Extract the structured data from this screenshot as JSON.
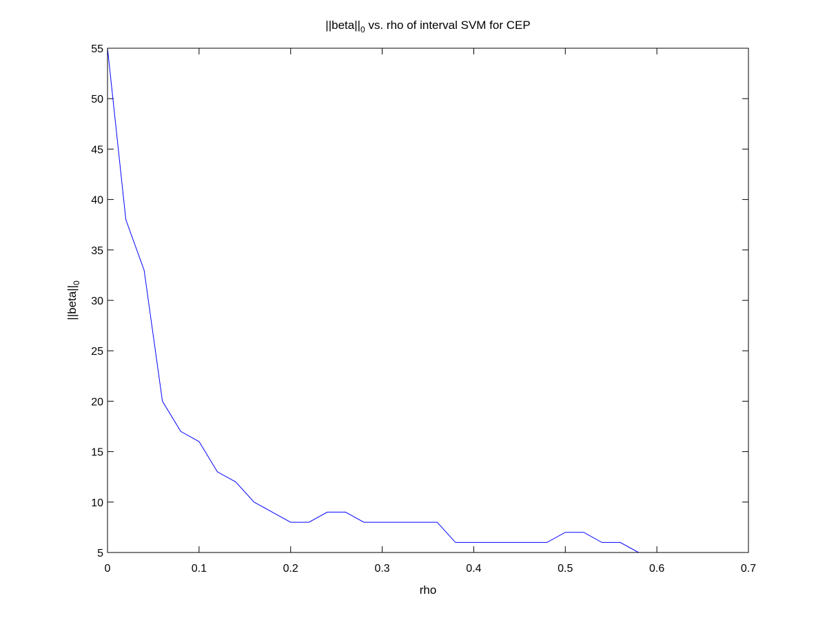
{
  "chart_data": {
    "type": "line",
    "title": {
      "main": "||beta||",
      "sub": "0",
      "rest": " vs. rho of interval SVM for CEP"
    },
    "xlabel": "rho",
    "ylabel": {
      "main": "||beta||",
      "sub": "0"
    },
    "xlim": [
      0,
      0.7
    ],
    "ylim": [
      5,
      55
    ],
    "xticks": [
      0,
      0.1,
      0.2,
      0.3,
      0.4,
      0.5,
      0.6,
      0.7
    ],
    "xtick_labels": [
      "0",
      "0.1",
      "0.2",
      "0.3",
      "0.4",
      "0.5",
      "0.6",
      "0.7"
    ],
    "yticks": [
      5,
      10,
      15,
      20,
      25,
      30,
      35,
      40,
      45,
      50,
      55
    ],
    "ytick_labels": [
      "5",
      "10",
      "15",
      "20",
      "25",
      "30",
      "35",
      "40",
      "45",
      "50",
      "55"
    ],
    "grid": false,
    "series": [
      {
        "color": "#0000ff",
        "x": [
          0,
          0.02,
          0.04,
          0.06,
          0.08,
          0.1,
          0.12,
          0.14,
          0.16,
          0.18,
          0.2,
          0.22,
          0.24,
          0.26,
          0.28,
          0.3,
          0.32,
          0.34,
          0.36,
          0.38,
          0.4,
          0.42,
          0.44,
          0.46,
          0.48,
          0.5,
          0.52,
          0.54,
          0.56,
          0.58
        ],
        "y": [
          55,
          38,
          33,
          20,
          17,
          16,
          13,
          12,
          10,
          9,
          8,
          8,
          9,
          9,
          8,
          8,
          8,
          8,
          8,
          6,
          6,
          6,
          6,
          6,
          6,
          7,
          7,
          6,
          6,
          5
        ]
      }
    ]
  }
}
